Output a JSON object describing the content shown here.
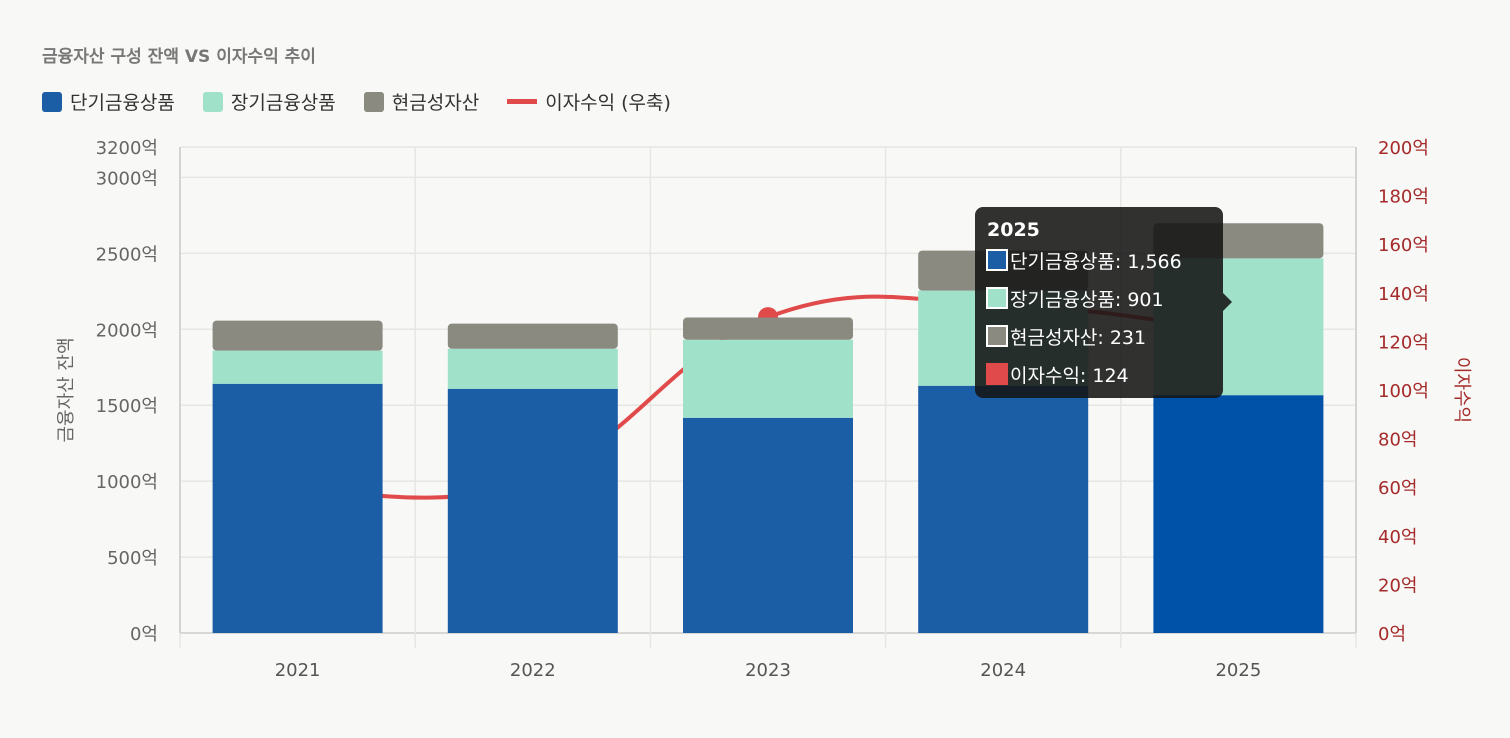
{
  "chart_data": {
    "type": "bar",
    "title": "금융자산 구성 잔액 VS 이자수익 추이",
    "categories": [
      "2021",
      "2022",
      "2023",
      "2024",
      "2025"
    ],
    "series": [
      {
        "name": "단기금융상품",
        "type": "bar",
        "axis": "left",
        "color": "#1b5ea6",
        "values": [
          1641,
          1608,
          1417,
          1628,
          1566
        ]
      },
      {
        "name": "장기금융상품",
        "type": "bar",
        "axis": "left",
        "color": "#a0e1c9",
        "values": [
          218,
          264,
          514,
          626,
          901
        ]
      },
      {
        "name": "현금성자산",
        "type": "bar",
        "axis": "left",
        "color": "#8a8a80",
        "values": [
          198,
          165,
          146,
          264,
          231
        ]
      },
      {
        "name": "이자수익 (우축)",
        "type": "line",
        "axis": "right",
        "color": "#e04a4a",
        "values": [
          59,
          63,
          130,
          135,
          124
        ]
      }
    ],
    "ylabel": "금융자산 잔액",
    "y2label": "이자수익",
    "ylim": [
      0,
      3200
    ],
    "y2lim": [
      0,
      200
    ],
    "yticks": [
      "0억",
      "500억",
      "1000억",
      "1500억",
      "2000억",
      "2500억",
      "3000억",
      "3200억"
    ],
    "ytick_values": [
      0,
      500,
      1000,
      1500,
      2000,
      2500,
      3000,
      3200
    ],
    "y2ticks": [
      "0억",
      "20억",
      "40억",
      "60억",
      "80억",
      "100억",
      "120억",
      "140억",
      "160억",
      "180억",
      "200억"
    ],
    "y2tick_values": [
      0,
      20,
      40,
      60,
      80,
      100,
      120,
      140,
      160,
      180,
      200
    ],
    "grid": true,
    "legend_placement": "top-left"
  },
  "tooltip": {
    "title": "2025",
    "rows": [
      {
        "label": "단기금융상품: 1,566",
        "color": "#1b5ea6"
      },
      {
        "label": "장기금융상품: 901",
        "color": "#a0e1c9"
      },
      {
        "label": "현금성자산: 231",
        "color": "#8a8a80"
      },
      {
        "label": "이자수익: 124",
        "color": "#e04a4a"
      }
    ]
  }
}
